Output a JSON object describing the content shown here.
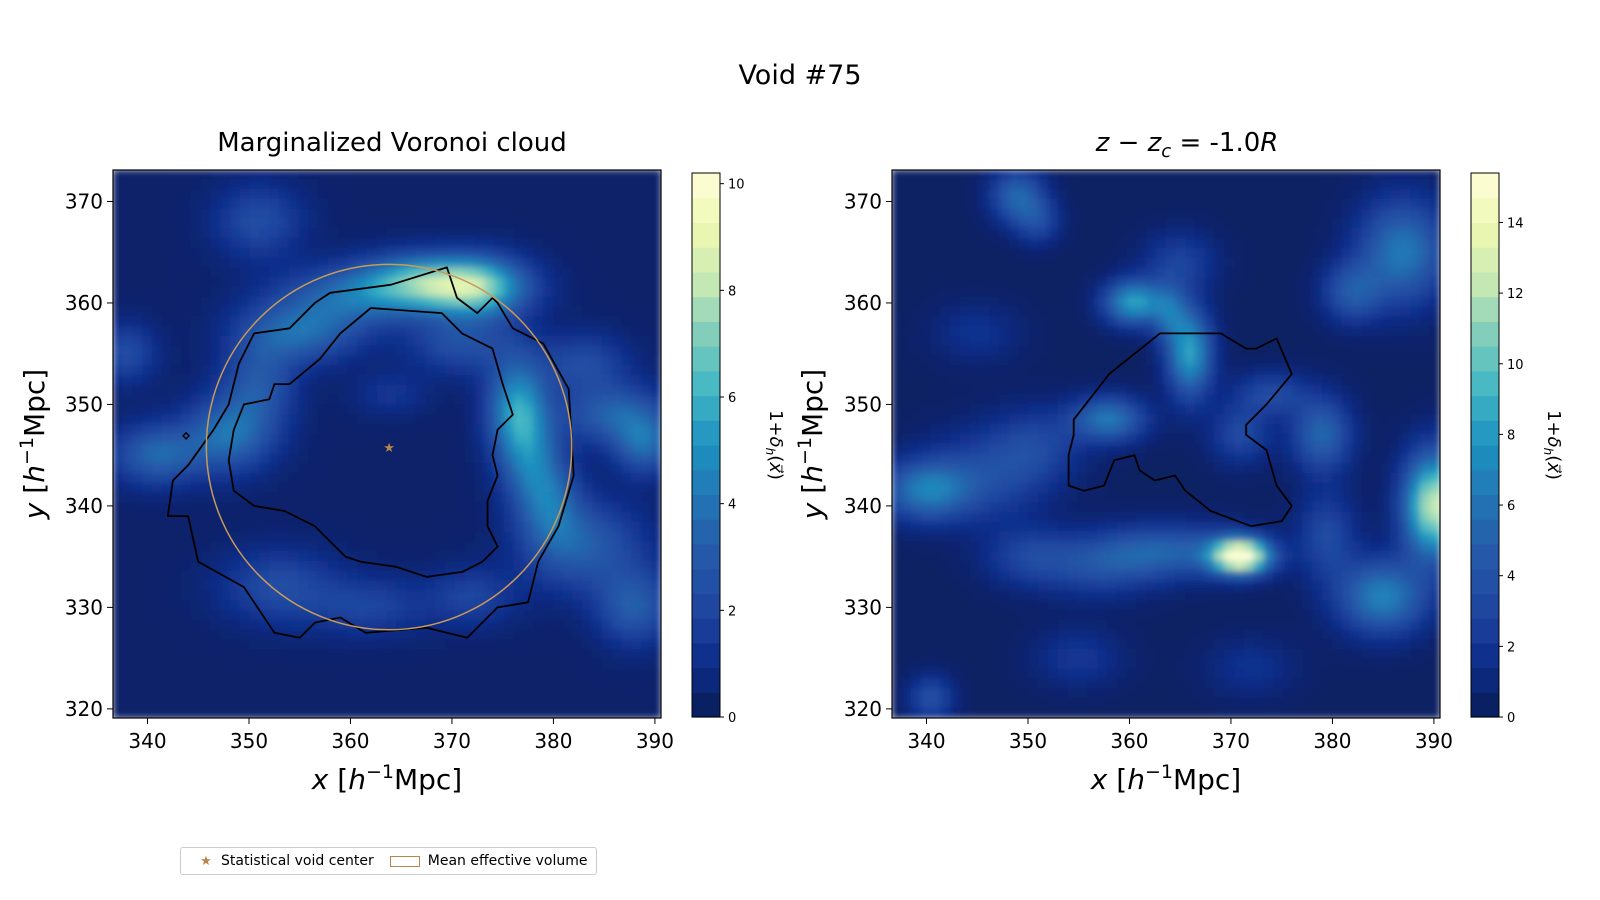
{
  "figure": {
    "suptitle": "Void #75"
  },
  "colors": {
    "colormap": [
      "#081d58",
      "#0e2d8a",
      "#1f46a0",
      "#2559a8",
      "#2375b4",
      "#1d91c0",
      "#41b6c4",
      "#7fcdbb",
      "#c7e9b4",
      "#edf8b1",
      "#ffffd9"
    ],
    "center_marker": "#b8864a",
    "effective_volume_circle": "#c89a5a",
    "contour": "#000000"
  },
  "legend": {
    "items": [
      {
        "label": "Statistical void center",
        "icon": "star-marker"
      },
      {
        "label": "Mean effective volume",
        "icon": "rectangle-outline"
      }
    ]
  },
  "chart_data": [
    {
      "type": "heatmap",
      "title": "Marginalized Voronoi cloud",
      "xlabel": "x [h⁻¹Mpc]",
      "ylabel": "y [h⁻¹Mpc]",
      "xlim": [
        336.6,
        390.6
      ],
      "ylim": [
        319.1,
        373.1
      ],
      "xticks": [
        340,
        350,
        360,
        370,
        380,
        390
      ],
      "yticks": [
        320,
        330,
        340,
        350,
        360,
        370
      ],
      "colorbar": {
        "label": "1+δh(x⃗)",
        "range": [
          0,
          10.2
        ],
        "ticks": [
          0,
          2,
          4,
          6,
          8,
          10
        ]
      },
      "void_center": [
        363.8,
        345.8
      ],
      "effective_radius": 18.0,
      "density_blobs": [
        {
          "x": 372.5,
          "y": 361.5,
          "sx": 3.5,
          "sy": 2.0,
          "amp": 6.5
        },
        {
          "x": 366.5,
          "y": 362.0,
          "sx": 4.0,
          "sy": 1.8,
          "amp": 5.0
        },
        {
          "x": 360.0,
          "y": 360.5,
          "sx": 5.0,
          "sy": 2.0,
          "amp": 3.0
        },
        {
          "x": 355.0,
          "y": 357.0,
          "sx": 4.0,
          "sy": 2.0,
          "amp": 3.2
        },
        {
          "x": 351.0,
          "y": 352.0,
          "sx": 2.5,
          "sy": 3.0,
          "amp": 2.5
        },
        {
          "x": 348.0,
          "y": 347.0,
          "sx": 3.0,
          "sy": 2.5,
          "amp": 3.5
        },
        {
          "x": 341.0,
          "y": 345.0,
          "sx": 3.0,
          "sy": 2.0,
          "amp": 3.2
        },
        {
          "x": 376.5,
          "y": 349.5,
          "sx": 2.0,
          "sy": 3.5,
          "amp": 5.0
        },
        {
          "x": 378.0,
          "y": 344.0,
          "sx": 2.0,
          "sy": 3.5,
          "amp": 3.0
        },
        {
          "x": 386.0,
          "y": 349.0,
          "sx": 3.5,
          "sy": 2.0,
          "amp": 3.0
        },
        {
          "x": 389.0,
          "y": 346.0,
          "sx": 2.0,
          "sy": 2.0,
          "amp": 3.2
        },
        {
          "x": 351.0,
          "y": 368.0,
          "sx": 3.0,
          "sy": 2.5,
          "amp": 2.0
        },
        {
          "x": 371.0,
          "y": 356.0,
          "sx": 3.5,
          "sy": 2.0,
          "amp": 2.2
        },
        {
          "x": 383.0,
          "y": 336.0,
          "sx": 4.0,
          "sy": 3.0,
          "amp": 2.8
        },
        {
          "x": 388.0,
          "y": 330.0,
          "sx": 2.5,
          "sy": 2.5,
          "amp": 2.8
        },
        {
          "x": 353.0,
          "y": 332.0,
          "sx": 4.0,
          "sy": 2.5,
          "amp": 2.0
        },
        {
          "x": 362.0,
          "y": 330.0,
          "sx": 4.0,
          "sy": 2.0,
          "amp": 1.6
        },
        {
          "x": 372.0,
          "y": 331.0,
          "sx": 3.0,
          "sy": 2.0,
          "amp": 1.6
        },
        {
          "x": 380.0,
          "y": 340.0,
          "sx": 2.0,
          "sy": 3.0,
          "amp": 2.5
        },
        {
          "x": 383.0,
          "y": 354.0,
          "sx": 3.0,
          "sy": 2.0,
          "amp": 2.0
        },
        {
          "x": 338.0,
          "y": 355.0,
          "sx": 2.0,
          "sy": 2.0,
          "amp": 2.0
        },
        {
          "x": 364.0,
          "y": 351.0,
          "sx": 2.5,
          "sy": 1.5,
          "amp": 1.0
        }
      ],
      "contour_outer": [
        [
          364.0,
          361.8
        ],
        [
          369.5,
          363.5
        ],
        [
          370.5,
          360.5
        ],
        [
          372.5,
          359.0
        ],
        [
          374.0,
          360.5
        ],
        [
          374.5,
          360.0
        ],
        [
          376.0,
          357.5
        ],
        [
          379.0,
          356.0
        ],
        [
          381.5,
          351.5
        ],
        [
          382.0,
          343.0
        ],
        [
          380.5,
          338.0
        ],
        [
          378.5,
          334.5
        ],
        [
          377.5,
          330.5
        ],
        [
          374.5,
          330.0
        ],
        [
          371.5,
          327.0
        ],
        [
          367.5,
          328.0
        ],
        [
          361.5,
          327.5
        ],
        [
          359.0,
          329.0
        ],
        [
          356.5,
          328.5
        ],
        [
          355.0,
          327.0
        ],
        [
          352.5,
          327.5
        ],
        [
          349.5,
          332.0
        ],
        [
          345.0,
          334.5
        ],
        [
          344.0,
          339.0
        ],
        [
          342.0,
          339.0
        ],
        [
          342.5,
          342.5
        ],
        [
          344.0,
          344.0
        ],
        [
          346.5,
          347.5
        ],
        [
          348.0,
          350.0
        ],
        [
          349.0,
          354.0
        ],
        [
          350.5,
          357.0
        ],
        [
          354.0,
          357.5
        ],
        [
          356.5,
          360.0
        ],
        [
          358.0,
          361.0
        ]
      ],
      "contour_inner": [
        [
          362.0,
          359.5
        ],
        [
          369.0,
          359.0
        ],
        [
          371.0,
          357.0
        ],
        [
          374.0,
          355.5
        ],
        [
          375.0,
          352.0
        ],
        [
          376.0,
          349.0
        ],
        [
          374.5,
          347.5
        ],
        [
          374.0,
          345.0
        ],
        [
          374.5,
          343.0
        ],
        [
          373.5,
          340.5
        ],
        [
          373.5,
          338.0
        ],
        [
          374.5,
          336.0
        ],
        [
          373.0,
          334.5
        ],
        [
          371.0,
          333.5
        ],
        [
          367.5,
          333.0
        ],
        [
          364.5,
          334.0
        ],
        [
          361.0,
          334.5
        ],
        [
          359.5,
          335.0
        ],
        [
          356.5,
          338.0
        ],
        [
          353.5,
          339.5
        ],
        [
          350.5,
          340.0
        ],
        [
          348.5,
          341.5
        ],
        [
          348.0,
          344.5
        ],
        [
          348.5,
          347.5
        ],
        [
          349.5,
          350.0
        ],
        [
          352.0,
          350.5
        ],
        [
          352.5,
          352.0
        ],
        [
          354.0,
          352.0
        ],
        [
          357.0,
          354.5
        ],
        [
          359.0,
          357.0
        ]
      ],
      "small_contour": {
        "x": 343.8,
        "y": 346.9
      }
    },
    {
      "type": "heatmap",
      "title": "z − z_c = -1.0R",
      "xlabel": "x [h⁻¹Mpc]",
      "ylabel": "y [h⁻¹Mpc]",
      "xlim": [
        336.6,
        390.6
      ],
      "ylim": [
        319.1,
        373.1
      ],
      "xticks": [
        340,
        350,
        360,
        370,
        380,
        390
      ],
      "yticks": [
        320,
        330,
        340,
        350,
        360,
        370
      ],
      "colorbar": {
        "label": "1+δh(x⃗)",
        "range": [
          0,
          15.4
        ],
        "ticks": [
          0,
          2,
          4,
          6,
          8,
          10,
          12,
          14
        ]
      },
      "density_blobs": [
        {
          "x": 371.0,
          "y": 335.0,
          "sx": 2.0,
          "sy": 1.2,
          "amp": 15.0
        },
        {
          "x": 364.0,
          "y": 335.5,
          "sx": 5.0,
          "sy": 1.8,
          "amp": 4.5
        },
        {
          "x": 357.0,
          "y": 334.0,
          "sx": 4.0,
          "sy": 2.0,
          "amp": 3.0
        },
        {
          "x": 350.0,
          "y": 335.0,
          "sx": 3.0,
          "sy": 2.0,
          "amp": 2.5
        },
        {
          "x": 360.5,
          "y": 360.0,
          "sx": 2.0,
          "sy": 1.5,
          "amp": 8.0
        },
        {
          "x": 366.0,
          "y": 355.0,
          "sx": 1.5,
          "sy": 3.0,
          "amp": 8.0
        },
        {
          "x": 364.0,
          "y": 359.0,
          "sx": 1.2,
          "sy": 2.0,
          "amp": 4.0
        },
        {
          "x": 358.0,
          "y": 348.5,
          "sx": 2.5,
          "sy": 1.5,
          "amp": 6.0
        },
        {
          "x": 340.0,
          "y": 341.5,
          "sx": 3.0,
          "sy": 2.0,
          "amp": 6.0
        },
        {
          "x": 346.0,
          "y": 343.0,
          "sx": 4.0,
          "sy": 3.0,
          "amp": 3.0
        },
        {
          "x": 351.0,
          "y": 346.0,
          "sx": 3.0,
          "sy": 2.5,
          "amp": 2.5
        },
        {
          "x": 390.0,
          "y": 340.0,
          "sx": 2.0,
          "sy": 3.5,
          "amp": 12.0
        },
        {
          "x": 385.0,
          "y": 331.0,
          "sx": 3.0,
          "sy": 2.5,
          "amp": 6.5
        },
        {
          "x": 387.0,
          "y": 365.0,
          "sx": 3.0,
          "sy": 3.5,
          "amp": 6.0
        },
        {
          "x": 382.0,
          "y": 361.0,
          "sx": 2.0,
          "sy": 2.0,
          "amp": 4.0
        },
        {
          "x": 379.0,
          "y": 347.0,
          "sx": 2.0,
          "sy": 2.5,
          "amp": 5.0
        },
        {
          "x": 374.0,
          "y": 351.0,
          "sx": 2.5,
          "sy": 1.5,
          "amp": 3.0
        },
        {
          "x": 371.0,
          "y": 347.0,
          "sx": 2.0,
          "sy": 2.0,
          "amp": 3.0
        },
        {
          "x": 349.0,
          "y": 370.5,
          "sx": 1.8,
          "sy": 1.8,
          "amp": 5.0
        },
        {
          "x": 351.0,
          "y": 368.0,
          "sx": 1.5,
          "sy": 1.5,
          "amp": 3.0
        },
        {
          "x": 365.0,
          "y": 364.0,
          "sx": 2.5,
          "sy": 2.0,
          "amp": 2.5
        },
        {
          "x": 340.5,
          "y": 321.0,
          "sx": 1.5,
          "sy": 1.5,
          "amp": 3.5
        },
        {
          "x": 379.5,
          "y": 337.0,
          "sx": 2.0,
          "sy": 3.0,
          "amp": 3.0
        },
        {
          "x": 355.0,
          "y": 325.0,
          "sx": 3.0,
          "sy": 2.0,
          "amp": 1.8
        },
        {
          "x": 372.0,
          "y": 324.0,
          "sx": 3.0,
          "sy": 2.0,
          "amp": 1.5
        },
        {
          "x": 345.0,
          "y": 357.0,
          "sx": 3.0,
          "sy": 2.0,
          "amp": 1.5
        }
      ],
      "contour": [
        [
          354.5,
          348.5
        ],
        [
          358.0,
          353.0
        ],
        [
          363.0,
          357.0
        ],
        [
          369.0,
          357.0
        ],
        [
          371.5,
          355.5
        ],
        [
          372.5,
          355.5
        ],
        [
          374.5,
          356.5
        ],
        [
          376.0,
          353.0
        ],
        [
          373.5,
          350.0
        ],
        [
          372.5,
          349.0
        ],
        [
          371.5,
          348.0
        ],
        [
          371.5,
          347.0
        ],
        [
          373.5,
          345.5
        ],
        [
          374.5,
          342.0
        ],
        [
          376.0,
          340.0
        ],
        [
          375.0,
          338.5
        ],
        [
          372.0,
          338.0
        ],
        [
          368.0,
          339.5
        ],
        [
          365.5,
          341.5
        ],
        [
          364.5,
          343.0
        ],
        [
          362.5,
          342.5
        ],
        [
          361.0,
          343.5
        ],
        [
          360.5,
          345.0
        ],
        [
          358.5,
          344.5
        ],
        [
          357.5,
          342.0
        ],
        [
          355.5,
          341.5
        ],
        [
          354.0,
          342.0
        ],
        [
          354.0,
          345.0
        ],
        [
          354.5,
          347.0
        ]
      ]
    }
  ]
}
